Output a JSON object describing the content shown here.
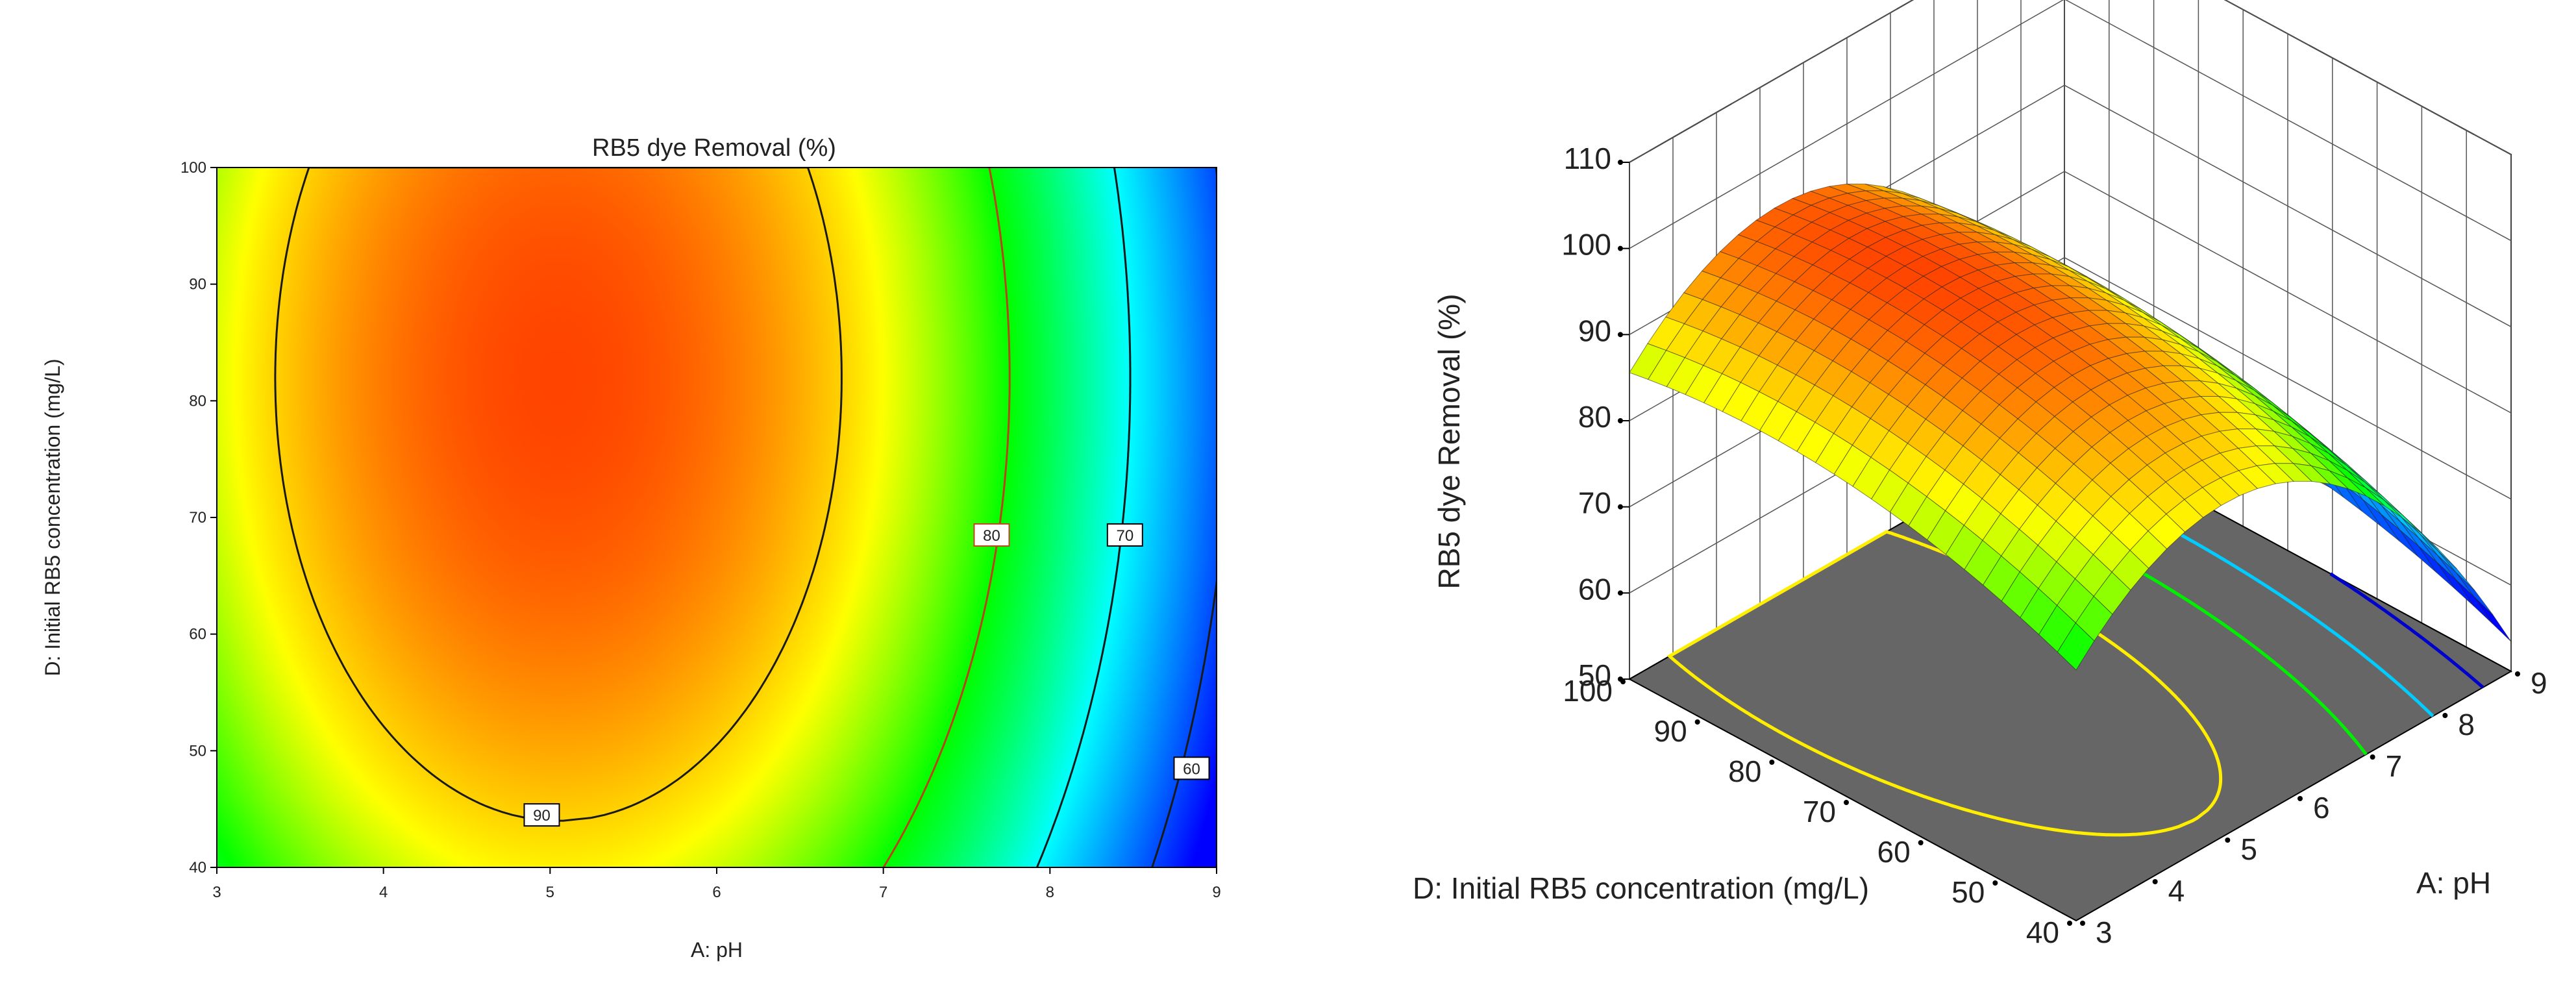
{
  "chart_data": [
    {
      "type": "contour",
      "title": "RB5 dye Removal  (%)",
      "xlabel": "A: pH",
      "ylabel": "D: Initial RB5 concentration  (mg/L)",
      "xlim": [
        3,
        9
      ],
      "ylim": [
        40,
        100
      ],
      "x_ticks": [
        "3",
        "4",
        "5",
        "6",
        "7",
        "8",
        "9"
      ],
      "y_ticks": [
        "40",
        "50",
        "60",
        "70",
        "80",
        "90",
        "100"
      ],
      "color_scale": [
        "#0000ff",
        "#00ffff",
        "#00ff00",
        "#ffff00",
        "#ff4400"
      ],
      "contours": [
        {
          "level": 90,
          "label": "90",
          "label_at": [
            4.95,
            44.5
          ]
        },
        {
          "level": 80,
          "label": "80",
          "label_at": [
            7.65,
            68.5
          ]
        },
        {
          "level": 70,
          "label": "70",
          "label_at": [
            8.45,
            68.5
          ]
        },
        {
          "level": 60,
          "label": "60",
          "label_at": [
            8.85,
            48.5
          ]
        }
      ],
      "model": {
        "max": 96.5,
        "x_opt": 5.05,
        "y_opt": 82,
        "ax": 2.25,
        "ay": 0.0045
      }
    },
    {
      "type": "surface",
      "zlabel": "RB5 dye Removal  (%)",
      "xlabel": "A: pH",
      "ylabel": "D: Initial RB5 concentration  (mg/L)",
      "xlim": [
        3,
        9
      ],
      "ylim": [
        40,
        100
      ],
      "zlim": [
        50,
        110
      ],
      "x_ticks": [
        "3",
        "4",
        "5",
        "6",
        "7",
        "8",
        "9"
      ],
      "y_ticks": [
        "40",
        "50",
        "60",
        "70",
        "80",
        "90",
        "100"
      ],
      "z_ticks": [
        "50",
        "60",
        "70",
        "80",
        "90",
        "100",
        "110"
      ],
      "floor_color": "#666666",
      "floor_contours": [
        {
          "level": 90,
          "color": "#ffee00"
        },
        {
          "level": 80,
          "color": "#00ee00"
        },
        {
          "level": 70,
          "color": "#00ccff"
        },
        {
          "level": 60,
          "color": "#0000cc"
        }
      ]
    }
  ]
}
